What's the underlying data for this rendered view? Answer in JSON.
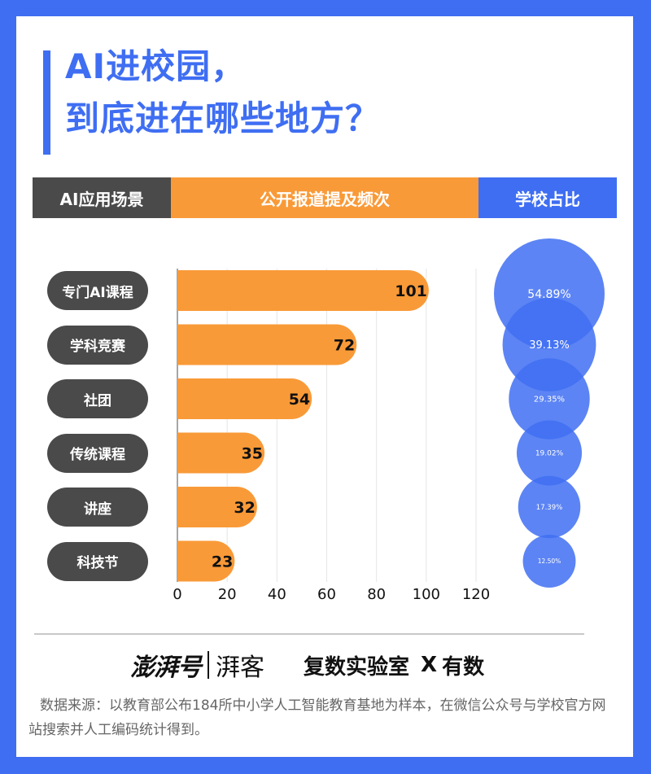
{
  "title": {
    "line1": "AI进校园，",
    "line2": "到底进在哪些地方？"
  },
  "headers": {
    "scene": "AI应用场景",
    "frequency": "公开报道提及频次",
    "share": "学校占比"
  },
  "colors": {
    "blue": "#3f6ef2",
    "orange": "#f99a38",
    "dark": "#4a4a4a"
  },
  "chart_data": {
    "type": "bar",
    "orientation": "horizontal",
    "categories": [
      "专门AI课程",
      "学科竞赛",
      "社团",
      "传统课程",
      "讲座",
      "科技节"
    ],
    "values": [
      101,
      72,
      54,
      35,
      32,
      23
    ],
    "value_labels": [
      "101",
      "72",
      "54",
      "35",
      "32",
      "23"
    ],
    "xlim": [
      0,
      120
    ],
    "x_ticks": [
      "0",
      "20",
      "40",
      "60",
      "80",
      "100",
      "120"
    ],
    "grid": true,
    "bubble_share": {
      "values": [
        54.89,
        39.13,
        29.35,
        19.02,
        17.39,
        12.5
      ],
      "labels": [
        "54.89%",
        "39.13%",
        "29.35%",
        "19.02%",
        "17.39%",
        "12.50%"
      ]
    }
  },
  "footer": {
    "logo1": "澎湃号",
    "logo2": "湃客",
    "logo3": "复数实验室",
    "logo_x": "X",
    "logo4": "有数",
    "source": "数据来源：以教育部公布184所中小学人工智能教育基地为样本，在微信公众号与学校官方网站搜索并人工编码统计得到。"
  }
}
